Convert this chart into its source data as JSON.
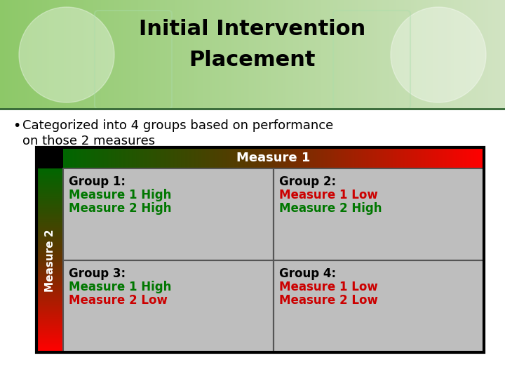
{
  "title_line1": "Initial Intervention",
  "title_line2": "Placement",
  "bullet_text_line1": "Categorized into 4 groups based on performance",
  "bullet_text_line2": "on those 2 measures",
  "header_measure1": "Measure 1",
  "sidebar_measure2": "Measure 2",
  "bg_color": "#ffffff",
  "title_bg_color": "#8dc868",
  "title_text_color": "#000000",
  "header_text_color": "#ffffff",
  "sidebar_text_color": "#ffffff",
  "cell_bg_color": "#bebebe",
  "outer_border_color": "#000000",
  "cell_border_color": "#555555",
  "groups": [
    {
      "name": "Group 1:",
      "lines": [
        "Measure 1 High",
        "Measure 2 High"
      ],
      "colors": [
        "#007700",
        "#007700"
      ]
    },
    {
      "name": "Group 2:",
      "lines": [
        "Measure 1 Low",
        "Measure 2 High"
      ],
      "colors": [
        "#cc0000",
        "#007700"
      ]
    },
    {
      "name": "Group 3:",
      "lines": [
        "Measure 1 High",
        "Measure 2 Low"
      ],
      "colors": [
        "#007700",
        "#cc0000"
      ]
    },
    {
      "name": "Group 4:",
      "lines": [
        "Measure 1 Low",
        "Measure 2 Low"
      ],
      "colors": [
        "#cc0000",
        "#cc0000"
      ]
    }
  ]
}
